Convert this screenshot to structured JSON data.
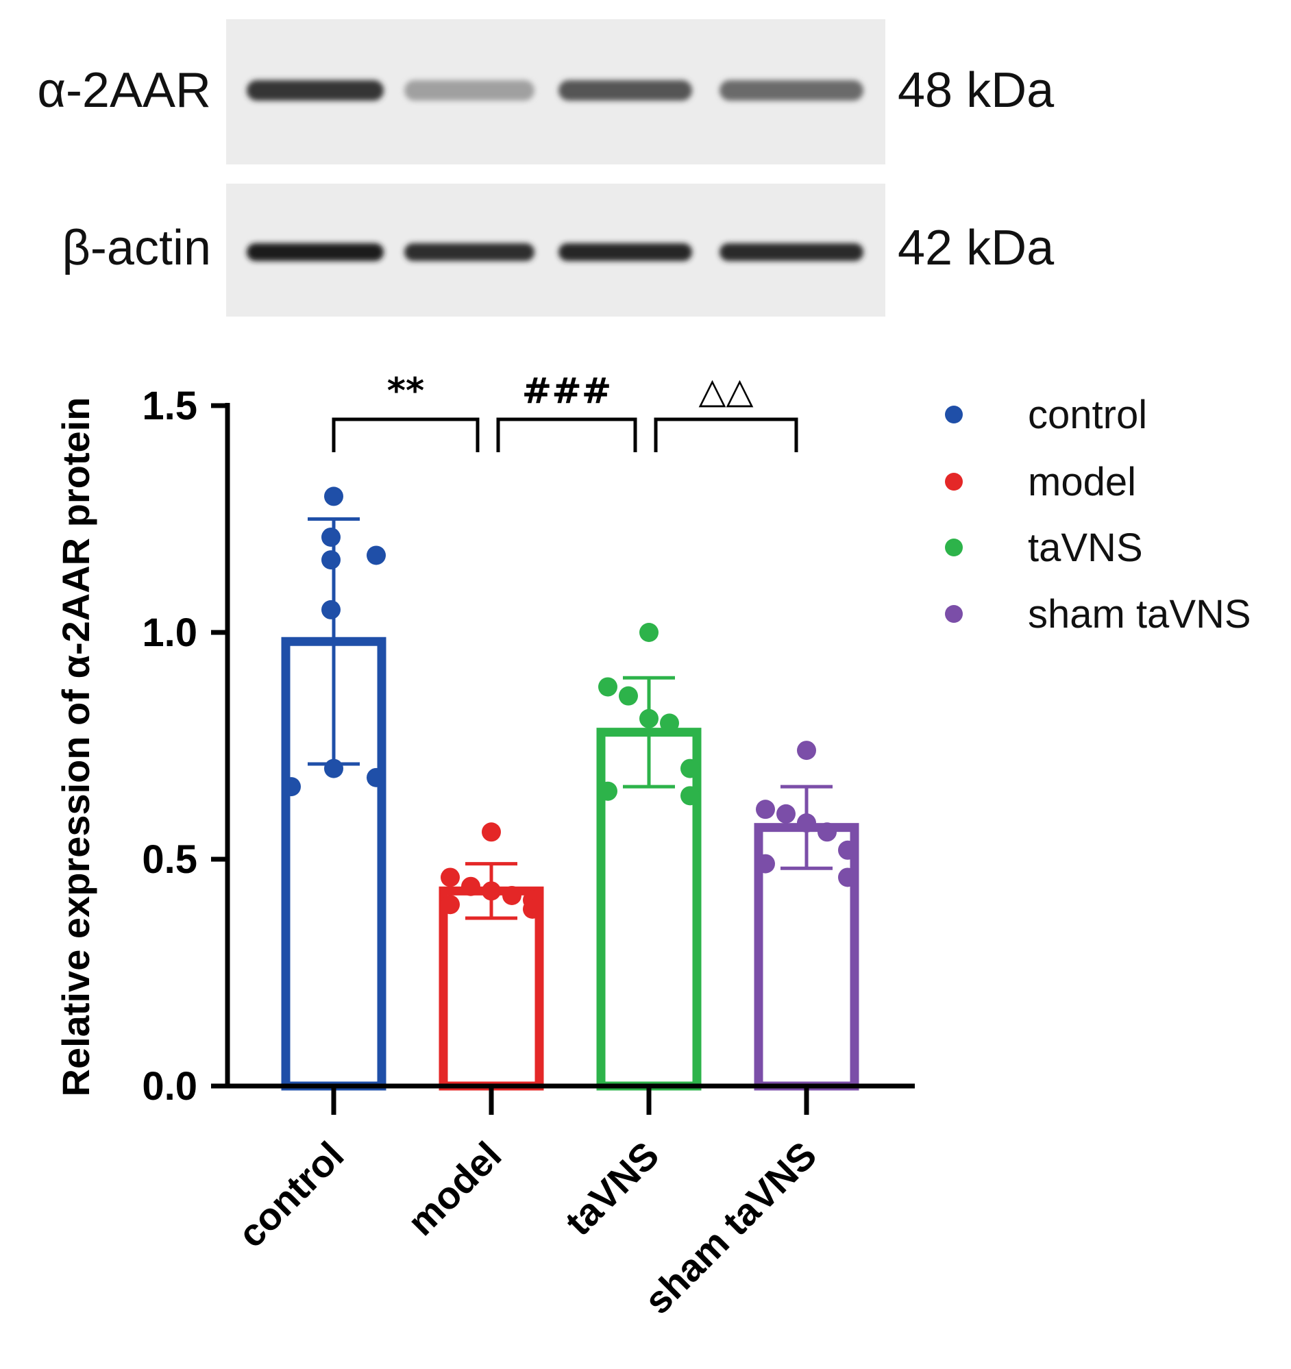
{
  "blot": {
    "rows": [
      {
        "protein": "α-2AAR",
        "size": "48 kDa",
        "band_intensities": [
          0.85,
          0.35,
          0.7,
          0.6
        ]
      },
      {
        "protein": "β-actin",
        "size": "42 kDa",
        "band_intensities": [
          0.95,
          0.88,
          0.92,
          0.9
        ]
      }
    ]
  },
  "chart_data": {
    "type": "bar",
    "categories": [
      "control",
      "model",
      "taVNS",
      "sham taVNS"
    ],
    "values": [
      0.98,
      0.43,
      0.78,
      0.57
    ],
    "errors": [
      0.27,
      0.06,
      0.12,
      0.09
    ],
    "points": [
      [
        1.3,
        1.21,
        1.16,
        1.17,
        1.05,
        0.7,
        0.68,
        0.66
      ],
      [
        0.56,
        0.46,
        0.44,
        0.43,
        0.42,
        0.41,
        0.4,
        0.39
      ],
      [
        1.0,
        0.88,
        0.86,
        0.81,
        0.8,
        0.7,
        0.65,
        0.64
      ],
      [
        0.74,
        0.61,
        0.6,
        0.58,
        0.56,
        0.52,
        0.49,
        0.46
      ]
    ],
    "colors": [
      "#1f4fa8",
      "#e42727",
      "#2db34a",
      "#7b4ea8"
    ],
    "xlabel": "",
    "ylabel": "Relative expression of α-2AAR protein",
    "ylim": [
      0,
      1.5
    ],
    "yticks": [
      "0.0",
      "0.5",
      "1.0",
      "1.5"
    ],
    "ytick_values": [
      0,
      0.5,
      1.0,
      1.5
    ],
    "significance": [
      {
        "from": 0,
        "to": 1,
        "label": "**"
      },
      {
        "from": 1,
        "to": 2,
        "label": "###"
      },
      {
        "from": 2,
        "to": 3,
        "label": "△△"
      }
    ],
    "legend": {
      "position": "right",
      "entries": [
        "control",
        "model",
        "taVNS",
        "sham taVNS"
      ]
    }
  }
}
